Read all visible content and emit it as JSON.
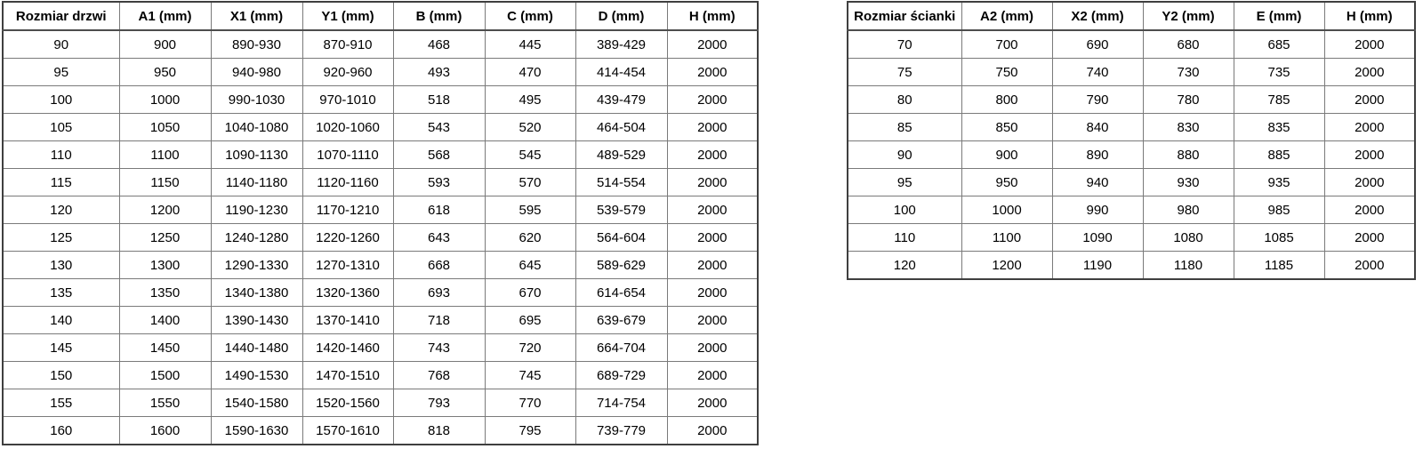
{
  "colors": {
    "border_inner": "#7a7a7a",
    "border_outer": "#3f3f3f",
    "text": "#000000",
    "background": "#ffffff"
  },
  "tables": [
    {
      "name": "door-sizes",
      "headers": [
        "Rozmiar drzwi",
        "A1 (mm)",
        "X1 (mm)",
        "Y1 (mm)",
        "B (mm)",
        "C (mm)",
        "D (mm)",
        "H (mm)"
      ],
      "rows": [
        [
          "90",
          "900",
          "890-930",
          "870-910",
          "468",
          "445",
          "389-429",
          "2000"
        ],
        [
          "95",
          "950",
          "940-980",
          "920-960",
          "493",
          "470",
          "414-454",
          "2000"
        ],
        [
          "100",
          "1000",
          "990-1030",
          "970-1010",
          "518",
          "495",
          "439-479",
          "2000"
        ],
        [
          "105",
          "1050",
          "1040-1080",
          "1020-1060",
          "543",
          "520",
          "464-504",
          "2000"
        ],
        [
          "110",
          "1100",
          "1090-1130",
          "1070-1110",
          "568",
          "545",
          "489-529",
          "2000"
        ],
        [
          "115",
          "1150",
          "1140-1180",
          "1120-1160",
          "593",
          "570",
          "514-554",
          "2000"
        ],
        [
          "120",
          "1200",
          "1190-1230",
          "1170-1210",
          "618",
          "595",
          "539-579",
          "2000"
        ],
        [
          "125",
          "1250",
          "1240-1280",
          "1220-1260",
          "643",
          "620",
          "564-604",
          "2000"
        ],
        [
          "130",
          "1300",
          "1290-1330",
          "1270-1310",
          "668",
          "645",
          "589-629",
          "2000"
        ],
        [
          "135",
          "1350",
          "1340-1380",
          "1320-1360",
          "693",
          "670",
          "614-654",
          "2000"
        ],
        [
          "140",
          "1400",
          "1390-1430",
          "1370-1410",
          "718",
          "695",
          "639-679",
          "2000"
        ],
        [
          "145",
          "1450",
          "1440-1480",
          "1420-1460",
          "743",
          "720",
          "664-704",
          "2000"
        ],
        [
          "150",
          "1500",
          "1490-1530",
          "1470-1510",
          "768",
          "745",
          "689-729",
          "2000"
        ],
        [
          "155",
          "1550",
          "1540-1580",
          "1520-1560",
          "793",
          "770",
          "714-754",
          "2000"
        ],
        [
          "160",
          "1600",
          "1590-1630",
          "1570-1610",
          "818",
          "795",
          "739-779",
          "2000"
        ]
      ]
    },
    {
      "name": "wall-sizes",
      "headers": [
        "Rozmiar ścianki",
        "A2 (mm)",
        "X2 (mm)",
        "Y2 (mm)",
        "E (mm)",
        "H (mm)"
      ],
      "rows": [
        [
          "70",
          "700",
          "690",
          "680",
          "685",
          "2000"
        ],
        [
          "75",
          "750",
          "740",
          "730",
          "735",
          "2000"
        ],
        [
          "80",
          "800",
          "790",
          "780",
          "785",
          "2000"
        ],
        [
          "85",
          "850",
          "840",
          "830",
          "835",
          "2000"
        ],
        [
          "90",
          "900",
          "890",
          "880",
          "885",
          "2000"
        ],
        [
          "95",
          "950",
          "940",
          "930",
          "935",
          "2000"
        ],
        [
          "100",
          "1000",
          "990",
          "980",
          "985",
          "2000"
        ],
        [
          "110",
          "1100",
          "1090",
          "1080",
          "1085",
          "2000"
        ],
        [
          "120",
          "1200",
          "1190",
          "1180",
          "1185",
          "2000"
        ]
      ]
    }
  ]
}
